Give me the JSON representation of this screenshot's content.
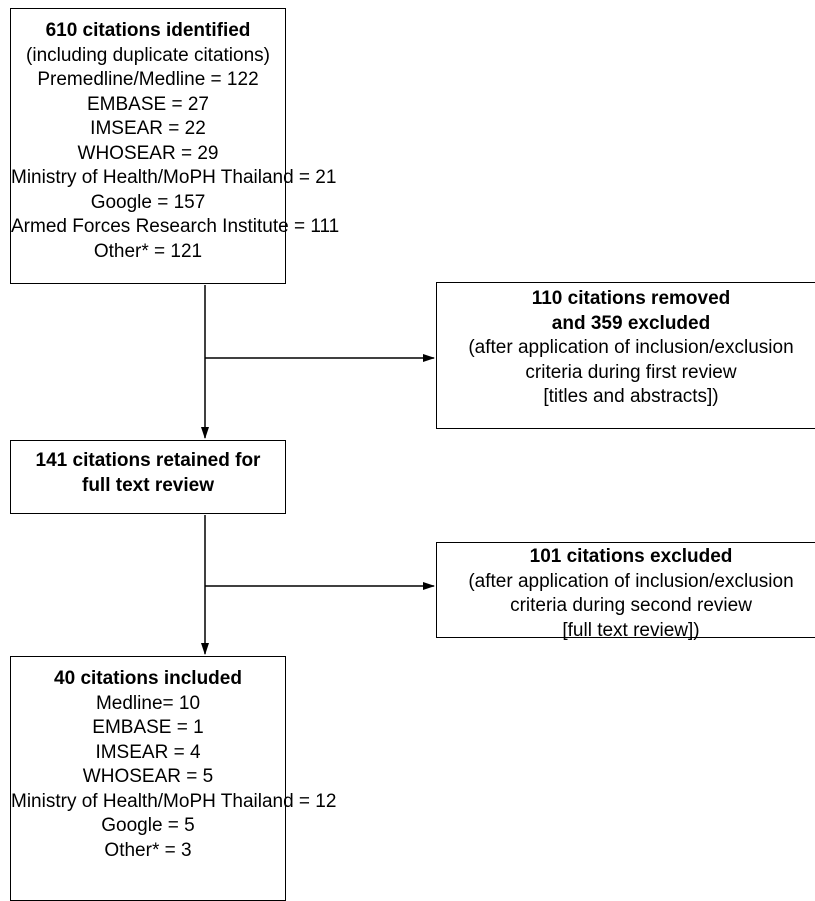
{
  "identified": {
    "heading": "610 citations identified",
    "lines": [
      "(including duplicate citations)",
      "Premedline/Medline = 122",
      "EMBASE = 27",
      "IMSEAR = 22",
      "WHOSEAR = 29",
      "Ministry of Health/MoPH Thailand = 21",
      "Google = 157",
      "Armed Forces Research Institute = 111",
      "Other* = 121"
    ]
  },
  "removed_excluded": {
    "heading_line1": "110 citations removed",
    "heading_line2": "and 359 excluded",
    "lines": [
      "(after application of inclusion/exclusion",
      "criteria during first review",
      "[titles and abstracts])"
    ]
  },
  "retained": {
    "heading_line1": "141 citations retained for",
    "heading_line2": "full text review"
  },
  "excluded_second": {
    "heading": "101 citations excluded",
    "lines": [
      "(after application of inclusion/exclusion",
      "criteria during second review",
      "[full text review])"
    ]
  },
  "included": {
    "heading": "40 citations included",
    "lines": [
      "Medline= 10",
      "EMBASE = 1",
      "IMSEAR = 4",
      "WHOSEAR = 5",
      "Ministry of Health/MoPH Thailand = 12",
      "Google = 5",
      "Other* = 3"
    ]
  }
}
